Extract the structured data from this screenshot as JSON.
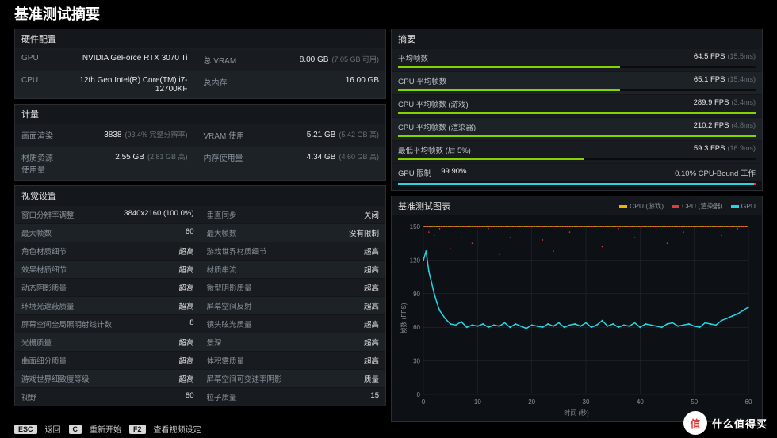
{
  "title": "基准测试摘要",
  "hardware": {
    "title": "硬件配置",
    "rows": [
      {
        "l1": "GPU",
        "v1": "NVIDIA GeForce RTX 3070 Ti",
        "l2": "总 VRAM",
        "v2": "8.00 GB",
        "hint2": "(7.05 GB 可用)"
      },
      {
        "l1": "CPU",
        "v1": "12th Gen Intel(R) Core(TM) i7-12700KF",
        "l2": "总内存",
        "v2": "16.00 GB",
        "hint2": ""
      }
    ]
  },
  "metrics": {
    "title": "计量",
    "rows": [
      {
        "l1": "画面渲染",
        "v1": "3838",
        "hint1": "(93.4% 完整分辨率)",
        "l2": "VRAM 使用",
        "v2": "5.21 GB",
        "hint2": "(5.42 GB 高)"
      },
      {
        "l1": "材质资源使用量",
        "v1": "2.55 GB",
        "hint1": "(2.81 GB 高)",
        "l2": "内存使用量",
        "v2": "4.34 GB",
        "hint2": "(4.60 GB 高)"
      }
    ]
  },
  "settings": {
    "title": "视觉设置",
    "rows": [
      {
        "l1": "窗口分辨率调整",
        "v1": "3840x2160 (100.0%)",
        "l2": "垂直同步",
        "v2": "关闭"
      },
      {
        "l1": "最大帧数",
        "v1": "60",
        "l2": "最大帧数",
        "v2": "没有限制"
      },
      {
        "l1": "角色材质细节",
        "v1": "超高",
        "l2": "游戏世界材质细节",
        "v2": "超高"
      },
      {
        "l1": "效果材质细节",
        "v1": "超高",
        "l2": "材质串流",
        "v2": "超高"
      },
      {
        "l1": "动态阴影质量",
        "v1": "超高",
        "l2": "微型阴影质量",
        "v2": "超高"
      },
      {
        "l1": "环境光遮蔽质量",
        "v1": "超高",
        "l2": "屏幕空间反射",
        "v2": "超高"
      },
      {
        "l1": "屏幕空间全局照明射线计数",
        "v1": "8",
        "l2": "镜头眩光质量",
        "v2": "超高"
      },
      {
        "l1": "光栅质量",
        "v1": "超高",
        "l2": "景深",
        "v2": "超高"
      },
      {
        "l1": "曲面细分质量",
        "v1": "超高",
        "l2": "体积雾质量",
        "v2": "超高"
      },
      {
        "l1": "游戏世界细致度等级",
        "v1": "超高",
        "l2": "屏幕空间可变速率阴影",
        "v2": "质量"
      },
      {
        "l1": "视野",
        "v1": "80",
        "l2": "粒子质量",
        "v2": "15"
      }
    ]
  },
  "summary": {
    "title": "摘要",
    "bar_color": "#87d300",
    "items": [
      {
        "label": "平均帧数",
        "val": "64.5 FPS",
        "ms": "(15.5ms)",
        "pct": 62
      },
      {
        "label": "GPU 平均帧数",
        "val": "65.1 FPS",
        "ms": "(15.4ms)",
        "pct": 62
      },
      {
        "label": "CPU 平均帧数 (游戏)",
        "val": "289.9 FPS",
        "ms": "(3.4ms)",
        "pct": 100
      },
      {
        "label": "CPU 平均帧数 (渲染器)",
        "val": "210.2 FPS",
        "ms": "(4.8ms)",
        "pct": 100
      },
      {
        "label": "最低平均帧数 (后 5%)",
        "val": "59.3 FPS",
        "ms": "(16.9ms)",
        "pct": 52
      }
    ],
    "gpu_limit": {
      "label": "GPU 限制",
      "gpu_pct": "99.90%",
      "cpu_label": "0.10% CPU-Bound 工作",
      "cpu_width": 0.4,
      "gpu_color": "#24d6e3",
      "cpu_color": "#e03c3c"
    }
  },
  "chart": {
    "title": "基准测试图表",
    "legend": [
      {
        "label": "CPU (游戏)",
        "color": "#f0b400"
      },
      {
        "label": "CPU (渲染器)",
        "color": "#e03c3c"
      },
      {
        "label": "GPU",
        "color": "#24d6e3"
      }
    ],
    "ylabel": "帧数 (FPS)",
    "xlabel": "时间 (秒)",
    "y_ticks": [
      0,
      30,
      60,
      90,
      120,
      150
    ],
    "x_ticks": [
      0,
      10,
      20,
      30,
      40,
      50,
      60
    ],
    "ylim": [
      0,
      150
    ],
    "xlim": [
      0,
      60
    ],
    "grid_color": "#2a2e32",
    "background": "#0d1115",
    "series": {
      "gpu": {
        "color": "#24d6e3",
        "points": [
          [
            0,
            120
          ],
          [
            0.5,
            128
          ],
          [
            1,
            110
          ],
          [
            1.5,
            100
          ],
          [
            2,
            90
          ],
          [
            2.5,
            82
          ],
          [
            3,
            75
          ],
          [
            4,
            68
          ],
          [
            5,
            63
          ],
          [
            6,
            62
          ],
          [
            7,
            65
          ],
          [
            8,
            60
          ],
          [
            9,
            62
          ],
          [
            10,
            61
          ],
          [
            11,
            63
          ],
          [
            12,
            60
          ],
          [
            13,
            62
          ],
          [
            14,
            61
          ],
          [
            15,
            64
          ],
          [
            16,
            60
          ],
          [
            17,
            63
          ],
          [
            18,
            61
          ],
          [
            19,
            59
          ],
          [
            20,
            62
          ],
          [
            21,
            61
          ],
          [
            22,
            60
          ],
          [
            23,
            63
          ],
          [
            24,
            61
          ],
          [
            25,
            64
          ],
          [
            26,
            60
          ],
          [
            27,
            62
          ],
          [
            28,
            63
          ],
          [
            29,
            61
          ],
          [
            30,
            64
          ],
          [
            31,
            60
          ],
          [
            32,
            62
          ],
          [
            33,
            66
          ],
          [
            34,
            61
          ],
          [
            35,
            63
          ],
          [
            36,
            60
          ],
          [
            37,
            62
          ],
          [
            38,
            61
          ],
          [
            39,
            64
          ],
          [
            40,
            60
          ],
          [
            41,
            63
          ],
          [
            42,
            62
          ],
          [
            43,
            61
          ],
          [
            44,
            60
          ],
          [
            45,
            63
          ],
          [
            46,
            64
          ],
          [
            47,
            61
          ],
          [
            48,
            62
          ],
          [
            49,
            63
          ],
          [
            50,
            61
          ],
          [
            51,
            60
          ],
          [
            52,
            64
          ],
          [
            53,
            63
          ],
          [
            54,
            62
          ],
          [
            55,
            66
          ],
          [
            56,
            68
          ],
          [
            57,
            70
          ],
          [
            58,
            72
          ],
          [
            59,
            75
          ],
          [
            60,
            78
          ]
        ]
      },
      "cpu_game": {
        "color": "#f0b400",
        "points": [
          [
            0,
            150
          ],
          [
            5,
            150
          ],
          [
            10,
            150
          ],
          [
            15,
            150
          ],
          [
            20,
            150
          ],
          [
            25,
            150
          ],
          [
            30,
            150
          ],
          [
            35,
            150
          ],
          [
            40,
            150
          ],
          [
            45,
            150
          ],
          [
            50,
            150
          ],
          [
            55,
            150
          ],
          [
            60,
            150
          ]
        ]
      },
      "cpu_render": {
        "color": "#e03c3c",
        "points": [
          [
            0,
            150
          ],
          [
            5,
            150
          ],
          [
            10,
            150
          ],
          [
            15,
            150
          ],
          [
            20,
            150
          ],
          [
            25,
            150
          ],
          [
            30,
            150
          ],
          [
            35,
            150
          ],
          [
            40,
            150
          ],
          [
            45,
            150
          ],
          [
            50,
            150
          ],
          [
            55,
            150
          ],
          [
            60,
            150
          ]
        ]
      },
      "scatter": {
        "color": "#e03c3c",
        "points": [
          [
            1,
            145
          ],
          [
            2,
            142
          ],
          [
            3,
            148
          ],
          [
            5,
            130
          ],
          [
            7,
            140
          ],
          [
            9,
            135
          ],
          [
            12,
            148
          ],
          [
            14,
            125
          ],
          [
            16,
            140
          ],
          [
            19,
            150
          ],
          [
            22,
            138
          ],
          [
            24,
            128
          ],
          [
            27,
            145
          ],
          [
            30,
            150
          ],
          [
            33,
            132
          ],
          [
            36,
            148
          ],
          [
            39,
            140
          ],
          [
            42,
            150
          ],
          [
            45,
            135
          ],
          [
            48,
            145
          ],
          [
            51,
            150
          ],
          [
            55,
            142
          ],
          [
            58,
            148
          ]
        ]
      }
    }
  },
  "footer": {
    "esc": {
      "key": "ESC",
      "label": "返回"
    },
    "c": {
      "key": "C",
      "label": "重新开始"
    },
    "f2": {
      "key": "F2",
      "label": "查看视频设定"
    }
  },
  "watermark": {
    "badge": "值",
    "text": "什么值得买"
  }
}
